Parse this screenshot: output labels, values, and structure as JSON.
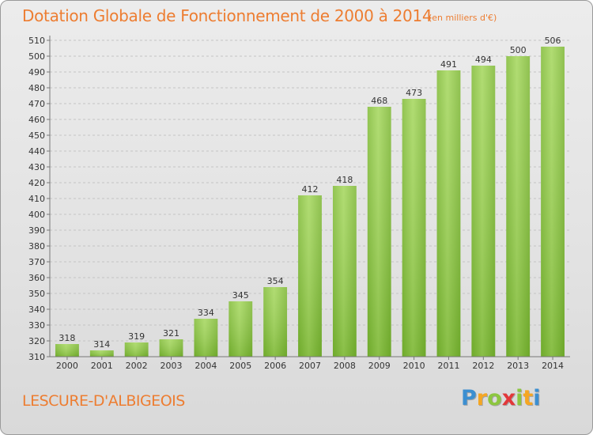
{
  "chart_data": {
    "type": "bar",
    "title": "Dotation Globale de Fonctionnement de 2000 à 2014",
    "unit": "(en milliers d'€)",
    "categories": [
      "2000",
      "2001",
      "2002",
      "2003",
      "2004",
      "2005",
      "2006",
      "2007",
      "2008",
      "2009",
      "2010",
      "2011",
      "2012",
      "2013",
      "2014"
    ],
    "values": [
      318,
      314,
      319,
      321,
      334,
      345,
      354,
      412,
      418,
      468,
      473,
      491,
      494,
      500,
      506
    ],
    "ylim": [
      310,
      510
    ],
    "yticks": [
      310,
      320,
      330,
      340,
      350,
      360,
      370,
      380,
      390,
      400,
      410,
      420,
      430,
      440,
      450,
      460,
      470,
      480,
      490,
      500,
      510
    ],
    "grid": true,
    "bar_color": "#8cc63f"
  },
  "footer": {
    "commune": "LESCURE-D'ALBIGEOIS",
    "logo_letters": [
      "P",
      "r",
      "o",
      "x",
      "i",
      "t",
      "i"
    ],
    "logo_colors": [
      "#3c8fd1",
      "#f5a623",
      "#8cc63f",
      "#e2373a",
      "#8cc63f",
      "#f5a623",
      "#3c8fd1"
    ]
  }
}
